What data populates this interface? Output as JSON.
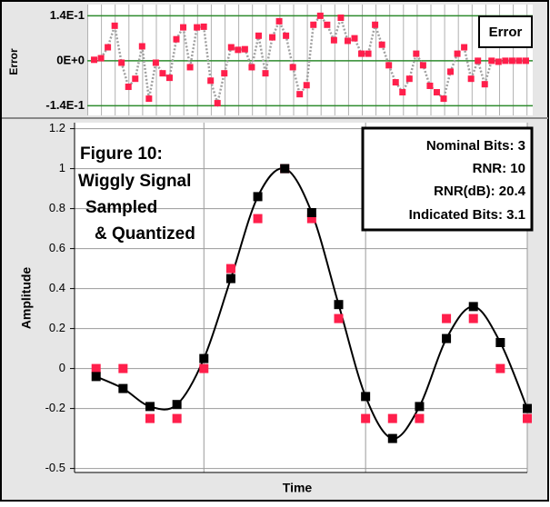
{
  "chart_data": [
    {
      "type": "scatter-line",
      "ylabel": "Error",
      "values": [
        0.003,
        0.008,
        0.042,
        0.109,
        -0.006,
        -0.081,
        -0.056,
        0.045,
        -0.118,
        -0.006,
        -0.039,
        -0.053,
        0.067,
        0.104,
        -0.02,
        0.104,
        0.106,
        -0.062,
        -0.132,
        -0.039,
        0.042,
        0.034,
        0.036,
        -0.02,
        0.078,
        -0.039,
        0.073,
        0.123,
        0.078,
        -0.02,
        -0.104,
        -0.076,
        0.112,
        0.14,
        0.112,
        0.064,
        0.134,
        0.062,
        0.07,
        0.022,
        0.022,
        0.112,
        0.05,
        -0.014,
        -0.067,
        -0.098,
        -0.056,
        0.022,
        -0.014,
        -0.078,
        -0.098,
        -0.118,
        -0.034,
        0.022,
        0.042,
        -0.056,
        0,
        -0.073,
        0,
        -0.003,
        0,
        0,
        0,
        0
      ],
      "color": "#ff1f4b",
      "line_color": "#a0a0a0",
      "legend": "Error",
      "xlim": [
        -1,
        64
      ],
      "ylim": [
        -0.17,
        0.175
      ],
      "yticks": [
        {
          "value": 0.14,
          "label": "1.4E-1"
        },
        {
          "value": 0,
          "label": "0E+0"
        },
        {
          "value": -0.14,
          "label": "-1.4E-1"
        }
      ],
      "grid_color": "#2e8b2e"
    },
    {
      "type": "scatter",
      "xlabel": "Time",
      "ylabel": "Amplitude",
      "x": [
        0,
        1,
        2,
        3,
        4,
        5,
        6,
        7,
        8,
        9,
        10,
        11,
        12,
        13,
        14,
        15,
        16
      ],
      "series": [
        {
          "name": "Sampled",
          "color": "#000000",
          "values": [
            -0.04,
            -0.1,
            -0.19,
            -0.18,
            0.05,
            0.45,
            0.86,
            1.0,
            0.78,
            0.32,
            -0.14,
            -0.35,
            -0.19,
            0.15,
            0.31,
            0.13,
            -0.2
          ],
          "smooth_line": true
        },
        {
          "name": "Quantized",
          "color": "#ff1f4b",
          "values": [
            0,
            0,
            -0.25,
            -0.25,
            0,
            0.5,
            0.75,
            1,
            0.75,
            0.25,
            -0.25,
            -0.25,
            -0.25,
            0.25,
            0.25,
            0,
            -0.25
          ]
        }
      ],
      "xlim": [
        -0.8,
        16
      ],
      "ylim": [
        -0.52,
        1.23
      ],
      "yticks": [
        1.2,
        1,
        0.8,
        0.6,
        0.4,
        0.2,
        0,
        -0.2,
        -0.5
      ],
      "xgrid": [
        4,
        10,
        16
      ],
      "annotations": [
        "Figure 10:",
        "Wiggly Signal",
        "Sampled",
        "& Quantized"
      ],
      "stats": [
        "Nominal Bits: 3",
        "RNR: 10",
        "RNR(dB): 20.4",
        "Indicated Bits: 3.1"
      ]
    }
  ]
}
